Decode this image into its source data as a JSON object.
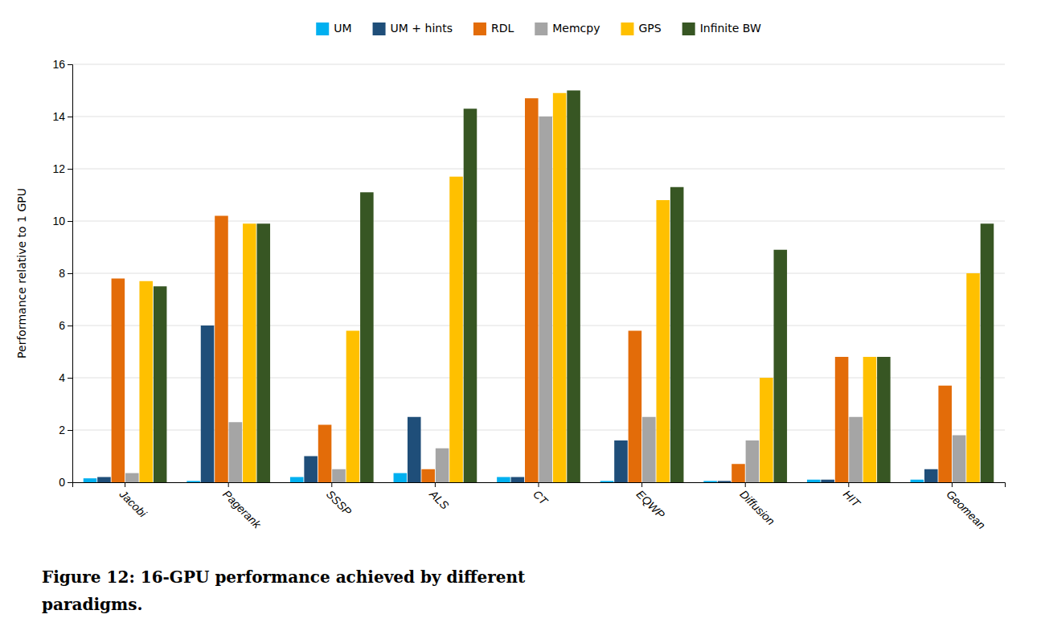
{
  "chart_data": {
    "type": "bar",
    "categories": [
      "Jacobi",
      "Pagerank",
      "SSSP",
      "ALS",
      "CT",
      "EQWP",
      "Diffusion",
      "HIT",
      "Geomean"
    ],
    "series": [
      {
        "name": "UM",
        "color": "#00B0F0",
        "values": [
          0.15,
          0.05,
          0.2,
          0.35,
          0.2,
          0.05,
          0.05,
          0.1,
          0.1
        ]
      },
      {
        "name": "UM + hints",
        "color": "#1F4E79",
        "values": [
          0.2,
          6.0,
          1.0,
          2.5,
          0.2,
          1.6,
          0.05,
          0.1,
          0.5
        ]
      },
      {
        "name": "RDL",
        "color": "#E36C09",
        "values": [
          7.8,
          10.2,
          2.2,
          0.5,
          14.7,
          5.8,
          0.7,
          4.8,
          3.7
        ]
      },
      {
        "name": "Memcpy",
        "color": "#A5A5A5",
        "values": [
          0.35,
          2.3,
          0.5,
          1.3,
          14.0,
          2.5,
          1.6,
          2.5,
          1.8
        ]
      },
      {
        "name": "GPS",
        "color": "#FFC000",
        "values": [
          7.7,
          9.9,
          5.8,
          11.7,
          14.9,
          10.8,
          4.0,
          4.8,
          8.0
        ]
      },
      {
        "name": "Infinite BW",
        "color": "#375623",
        "values": [
          7.5,
          9.9,
          11.1,
          14.3,
          15.0,
          11.3,
          8.9,
          4.8,
          9.9
        ]
      }
    ],
    "ylabel": "Performance relative to 1 GPU",
    "ylim": [
      0,
      16
    ],
    "yticks": [
      0,
      2,
      4,
      6,
      8,
      10,
      12,
      14,
      16
    ],
    "grid": true,
    "legend": "top",
    "annotations": [
      "Figure 12: 16-GPU performance achieved by different",
      "paradigms."
    ]
  }
}
